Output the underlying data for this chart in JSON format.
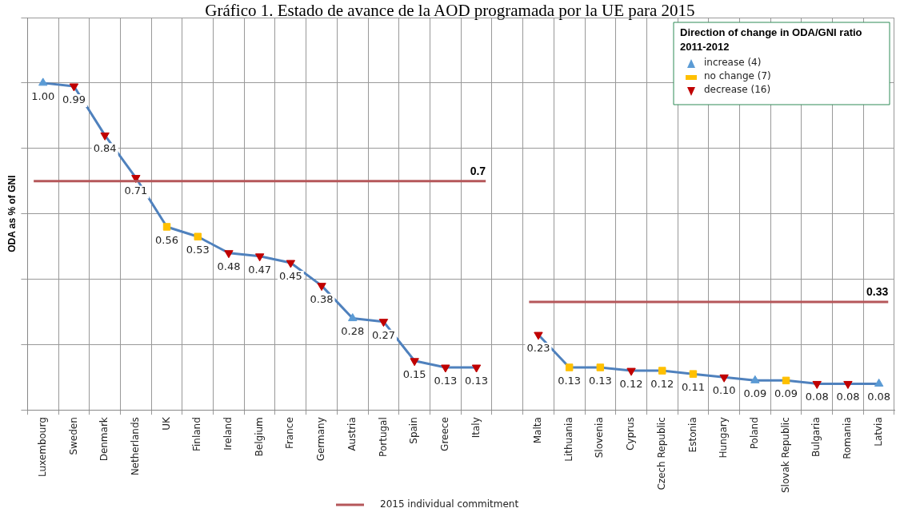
{
  "chart_data": {
    "type": "line",
    "title": "Gráfico 1. Estado de avance de la AOD programada por la UE para 2015",
    "ylabel": "ODA as % of GNI",
    "legend_title": "Direction of change in ODA/GNI ratio 2011-2012",
    "categories": [
      "Luxembourg",
      "Sweden",
      "Denmark",
      "Netherlands",
      "UK",
      "Finland",
      "Ireland",
      "Belgium",
      "France",
      "Germany",
      "Austria",
      "Portugal",
      "Spain",
      "Greece",
      "Italy",
      null,
      "Malta",
      "Lithuania",
      "Slovenia",
      "Cyprus",
      "Czech Republic",
      "Estonia",
      "Hungary",
      "Poland",
      "Slovak Republic",
      "Bulgaria",
      "Romania",
      "Latvia"
    ],
    "series": [
      {
        "type": "line",
        "color": "#4f81bd",
        "marker": "none",
        "values": [
          1.0,
          0.99,
          0.84,
          0.71,
          0.56,
          0.53,
          0.48,
          0.47,
          0.45,
          0.38,
          0.28,
          0.27,
          0.15,
          0.13,
          0.13,
          null,
          0.23,
          0.13,
          0.13,
          0.12,
          0.12,
          0.11,
          0.1,
          0.09,
          0.09,
          0.08,
          0.08,
          0.08
        ],
        "value_labels": [
          "1.00",
          "0.99",
          "0.84",
          "0.71",
          "0.56",
          "0.53",
          "0.48",
          "0.47",
          "0.45",
          "0.38",
          "0.28",
          "0.27",
          "0.15",
          "0.13",
          "0.13",
          null,
          "0.23",
          "0.13",
          "0.13",
          "0.12",
          "0.12",
          "0.11",
          "0.10",
          "0.09",
          "0.09",
          "0.08",
          "0.08",
          "0.08"
        ]
      },
      {
        "type": "scatter",
        "name": "increase (4)",
        "color": "#5b9bd5",
        "marker": "triangle",
        "values": [
          1.0,
          null,
          null,
          null,
          null,
          null,
          null,
          null,
          null,
          null,
          0.28,
          null,
          null,
          null,
          null,
          null,
          null,
          null,
          null,
          null,
          null,
          null,
          null,
          0.09,
          null,
          null,
          null,
          0.08
        ]
      },
      {
        "type": "scatter",
        "name": "no change (7)",
        "color": "#ffc000",
        "marker": "square",
        "values": [
          null,
          null,
          null,
          null,
          0.56,
          0.53,
          null,
          null,
          null,
          null,
          null,
          null,
          null,
          null,
          null,
          null,
          null,
          0.13,
          0.13,
          null,
          0.12,
          0.11,
          null,
          null,
          0.09,
          null,
          null,
          null
        ]
      },
      {
        "type": "scatter",
        "name": "decrease (16)",
        "color": "#c00000",
        "marker": "triangle-down",
        "values": [
          null,
          0.99,
          0.84,
          0.71,
          null,
          null,
          0.48,
          0.47,
          0.45,
          0.38,
          null,
          0.27,
          0.15,
          0.13,
          0.13,
          null,
          0.23,
          null,
          null,
          0.12,
          null,
          null,
          0.1,
          null,
          null,
          0.08,
          0.08,
          null
        ]
      }
    ],
    "ylim": [
      0,
      1.2
    ],
    "yticks": [
      {
        "value": 0,
        "label": null
      },
      {
        "value": 0.2,
        "label": null
      },
      {
        "value": 0.4,
        "label": null
      },
      {
        "value": 0.6,
        "label": null
      },
      {
        "value": 0.8,
        "label": null
      },
      {
        "value": 1.0,
        "label": null
      },
      {
        "value": 1.2,
        "label": null
      }
    ],
    "tick_labels": "x",
    "grid": true,
    "legend": "top right",
    "ref_lines": [
      {
        "axis": "y",
        "value": 0.7,
        "label": "0.7",
        "color": "#b5575a"
      },
      {
        "axis": "y",
        "value": 0.33,
        "label": "0.33",
        "color": "#b5575a"
      }
    ],
    "annotations": [
      "2015 individual commitment"
    ]
  }
}
